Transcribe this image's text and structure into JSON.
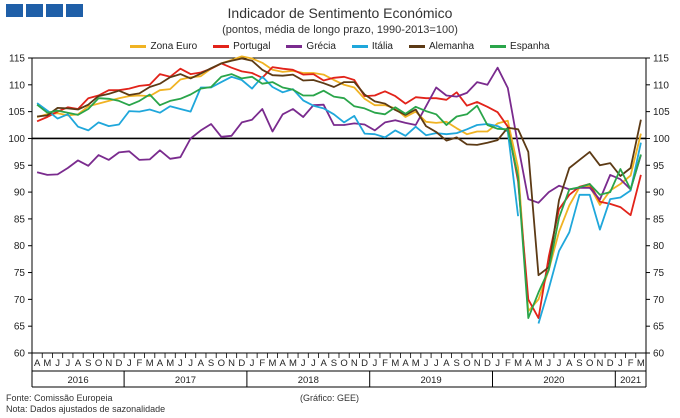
{
  "header": {
    "title": "Indicador de Sentimento Económico",
    "subtitle": "(pontos, média de longo prazo, 1990-2013=100)"
  },
  "footer": {
    "source": "Fonte: Comissão Europeia",
    "note": "Nota: Dados ajustados de sazonalidade",
    "credit": "(Gráfico: GEE)"
  },
  "chart_data": {
    "type": "line",
    "title": "Indicador de Sentimento Económico",
    "subtitle": "(pontos, média de longo prazo, 1990-2013=100)",
    "x": [
      "2016-04",
      "2016-05",
      "2016-06",
      "2016-07",
      "2016-08",
      "2016-09",
      "2016-10",
      "2016-11",
      "2016-12",
      "2017-01",
      "2017-02",
      "2017-03",
      "2017-04",
      "2017-05",
      "2017-06",
      "2017-07",
      "2017-08",
      "2017-09",
      "2017-10",
      "2017-11",
      "2017-12",
      "2018-01",
      "2018-02",
      "2018-03",
      "2018-04",
      "2018-05",
      "2018-06",
      "2018-07",
      "2018-08",
      "2018-09",
      "2018-10",
      "2018-11",
      "2018-12",
      "2019-01",
      "2019-02",
      "2019-03",
      "2019-04",
      "2019-05",
      "2019-06",
      "2019-07",
      "2019-08",
      "2019-09",
      "2019-10",
      "2019-11",
      "2019-12",
      "2020-01",
      "2020-02",
      "2020-03",
      "2020-04",
      "2020-05",
      "2020-06",
      "2020-07",
      "2020-08",
      "2020-09",
      "2020-10",
      "2020-11",
      "2020-12",
      "2021-01",
      "2021-02",
      "2021-03"
    ],
    "month_labels": [
      "A",
      "M",
      "J",
      "J",
      "A",
      "S",
      "O",
      "N",
      "D",
      "J",
      "F",
      "M",
      "A",
      "M",
      "J",
      "J",
      "A",
      "S",
      "O",
      "N",
      "D",
      "J",
      "F",
      "M",
      "A",
      "M",
      "J",
      "J",
      "A",
      "S",
      "O",
      "N",
      "D",
      "J",
      "F",
      "M",
      "A",
      "M",
      "J",
      "J",
      "A",
      "S",
      "O",
      "N",
      "D",
      "J",
      "F",
      "M",
      "A",
      "M",
      "J",
      "J",
      "A",
      "S",
      "O",
      "N",
      "D",
      "J",
      "F",
      "M"
    ],
    "year_labels": [
      {
        "label": "2016",
        "start": 0,
        "end": 8
      },
      {
        "label": "2017",
        "start": 9,
        "end": 20
      },
      {
        "label": "2018",
        "start": 21,
        "end": 32
      },
      {
        "label": "2019",
        "start": 33,
        "end": 44
      },
      {
        "label": "2020",
        "start": 45,
        "end": 56
      },
      {
        "label": "2021",
        "start": 57,
        "end": 59
      }
    ],
    "ylim": [
      60,
      115
    ],
    "yticks": [
      60,
      65,
      70,
      75,
      80,
      85,
      90,
      95,
      100,
      105,
      110,
      115
    ],
    "reference_line": 100,
    "grid": false,
    "legend_position": "top",
    "series": [
      {
        "name": "Zona Euro",
        "color": "#f0b323",
        "values": [
          104.0,
          104.5,
          104.7,
          104.3,
          104.5,
          106.0,
          106.5,
          107.0,
          107.5,
          107.9,
          108.0,
          107.9,
          109.0,
          109.2,
          111.0,
          111.4,
          111.6,
          113.0,
          114.0,
          114.6,
          115.3,
          114.9,
          114.1,
          112.8,
          112.4,
          112.6,
          112.2,
          112.2,
          111.9,
          110.9,
          110.0,
          109.5,
          107.4,
          106.2,
          106.2,
          105.6,
          104.0,
          105.0,
          103.1,
          102.9,
          103.1,
          101.9,
          100.8,
          101.3,
          101.3,
          102.8,
          103.3,
          94.5,
          67.8,
          70.0,
          75.5,
          82.6,
          87.5,
          90.9,
          91.1,
          87.6,
          90.3,
          91.5,
          93.1,
          100.9
        ]
      },
      {
        "name": "Portugal",
        "color": "#e2231a",
        "values": [
          103.2,
          104.0,
          105.0,
          105.8,
          105.5,
          107.5,
          108.0,
          109.0,
          109.0,
          109.3,
          109.8,
          110.0,
          112.0,
          111.5,
          113.0,
          112.0,
          112.3,
          113.0,
          114.0,
          113.2,
          112.5,
          112.2,
          111.3,
          113.3,
          113.0,
          112.8,
          111.9,
          112.0,
          110.8,
          111.3,
          111.5,
          110.9,
          107.9,
          108.0,
          108.8,
          107.9,
          106.5,
          107.7,
          107.5,
          107.5,
          107.2,
          108.6,
          106.1,
          106.8,
          105.9,
          104.9,
          102.2,
          92.0,
          70.0,
          66.5,
          78.0,
          86.8,
          89.5,
          91.0,
          91.5,
          88.2,
          87.8,
          87.2,
          85.7,
          93.2
        ]
      },
      {
        "name": "Grécia",
        "color": "#7a2b8e",
        "values": [
          93.7,
          93.2,
          93.3,
          94.5,
          95.9,
          94.9,
          96.9,
          96.0,
          97.4,
          97.6,
          96.0,
          96.1,
          97.8,
          96.2,
          96.5,
          100.0,
          101.5,
          102.7,
          100.3,
          100.5,
          103.0,
          103.5,
          105.5,
          101.3,
          104.5,
          105.5,
          104.0,
          106.2,
          106.3,
          102.5,
          102.5,
          102.8,
          102.6,
          101.5,
          103.0,
          103.4,
          102.9,
          102.5,
          106.0,
          109.5,
          108.0,
          107.8,
          108.5,
          110.5,
          110.0,
          113.2,
          109.4,
          98.7,
          88.7,
          88.0,
          90.0,
          91.2,
          90.5,
          90.8,
          90.8,
          88.6,
          93.2,
          92.4,
          90.5,
          96.9
        ]
      },
      {
        "name": "Itália",
        "color": "#1fa7db",
        "values": [
          106.6,
          105.2,
          103.7,
          104.5,
          102.2,
          101.5,
          103.0,
          102.3,
          102.6,
          105.1,
          105.0,
          105.4,
          104.8,
          106.0,
          105.5,
          105.0,
          109.5,
          109.5,
          110.5,
          111.5,
          110.9,
          109.3,
          111.5,
          109.6,
          108.6,
          109.2,
          107.1,
          106.1,
          105.6,
          104.5,
          103.0,
          104.2,
          100.9,
          100.8,
          100.2,
          101.5,
          100.5,
          102.2,
          100.6,
          101.0,
          100.8,
          101.0,
          101.7,
          102.5,
          102.7,
          102.3,
          101.3,
          85.5,
          null,
          65.5,
          72.0,
          79.0,
          82.5,
          89.5,
          89.5,
          83.0,
          88.7,
          89.0,
          90.3,
          99.2
        ]
      },
      {
        "name": "Alemanha",
        "color": "#5c3a15",
        "values": [
          104.1,
          104.3,
          105.7,
          105.6,
          105.4,
          106.3,
          107.9,
          108.3,
          108.9,
          108.1,
          108.4,
          109.6,
          110.2,
          111.4,
          112.0,
          111.2,
          112.1,
          113.1,
          114.0,
          114.5,
          114.9,
          114.5,
          112.8,
          111.8,
          111.7,
          111.9,
          110.8,
          110.9,
          110.3,
          109.6,
          110.5,
          110.5,
          108.2,
          106.9,
          106.5,
          105.3,
          104.4,
          105.4,
          102.3,
          101.2,
          99.6,
          100.2,
          98.9,
          98.8,
          99.2,
          99.7,
          102.0,
          101.7,
          97.5,
          74.5,
          76.0,
          88.5,
          94.5,
          96.0,
          97.5,
          95.0,
          95.4,
          93.0,
          94.5,
          103.5
        ]
      },
      {
        "name": "Espanha",
        "color": "#2aa54a",
        "values": [
          106.3,
          104.8,
          105.2,
          104.8,
          104.4,
          105.5,
          107.5,
          107.4,
          107.0,
          106.2,
          107.0,
          108.2,
          106.2,
          107.0,
          107.4,
          108.2,
          109.3,
          109.6,
          111.5,
          112.0,
          111.2,
          111.5,
          110.2,
          110.5,
          109.5,
          109.1,
          108.0,
          108.0,
          108.9,
          107.8,
          107.5,
          106.0,
          105.6,
          104.8,
          104.5,
          105.8,
          104.6,
          105.9,
          105.1,
          104.5,
          102.5,
          104.1,
          104.5,
          106.1,
          102.5,
          101.8,
          101.7,
          92.8,
          66.5,
          71.3,
          75.5,
          85.2,
          90.5,
          90.9,
          91.5,
          89.5,
          90.0,
          94.3,
          90.5,
          97.0
        ]
      }
    ]
  }
}
